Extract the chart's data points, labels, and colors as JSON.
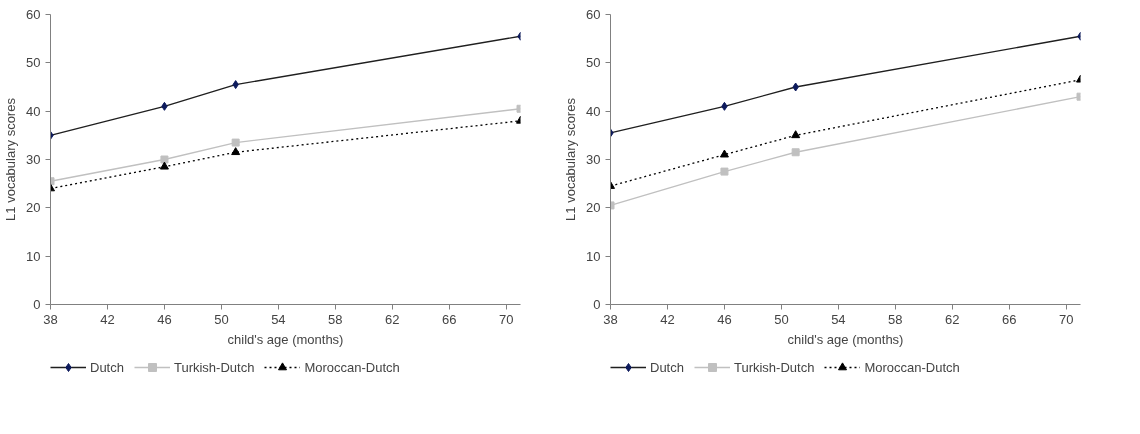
{
  "chart_data": [
    {
      "type": "line",
      "xlabel": "child's age (months)",
      "ylabel": "L1 vocabulary scores",
      "x": [
        38,
        46,
        51,
        71
      ],
      "xlim": [
        38,
        71
      ],
      "xticks": [
        38,
        42,
        46,
        50,
        54,
        58,
        62,
        66,
        70
      ],
      "ylim": [
        0,
        60
      ],
      "yticks": [
        0,
        10,
        20,
        30,
        40,
        50,
        60
      ],
      "grid": false,
      "legend": "bottom",
      "series": [
        {
          "name": "Dutch",
          "color": "#0d1a5c",
          "marker": "diamond",
          "line_style": "solid",
          "values": [
            35,
            41,
            45.5,
            55.5
          ]
        },
        {
          "name": "Turkish-Dutch",
          "color": "#c0c0c0",
          "marker": "square",
          "line_style": "solid",
          "values": [
            25.5,
            30,
            33.5,
            40.5
          ]
        },
        {
          "name": "Moroccan-Dutch",
          "color": "#000000",
          "marker": "triangle",
          "line_style": "dotted",
          "values": [
            24,
            28.5,
            31.5,
            38
          ]
        }
      ]
    },
    {
      "type": "line",
      "xlabel": "child's age (months)",
      "ylabel": "L1 vocabulary scores",
      "x": [
        38,
        46,
        51,
        71
      ],
      "xlim": [
        38,
        71
      ],
      "xticks": [
        38,
        42,
        46,
        50,
        54,
        58,
        62,
        66,
        70
      ],
      "ylim": [
        0,
        60
      ],
      "yticks": [
        0,
        10,
        20,
        30,
        40,
        50,
        60
      ],
      "grid": false,
      "legend": "bottom",
      "series": [
        {
          "name": "Dutch",
          "color": "#0d1a5c",
          "marker": "diamond",
          "line_style": "solid",
          "values": [
            35.5,
            41,
            45,
            55.5
          ]
        },
        {
          "name": "Turkish-Dutch",
          "color": "#c0c0c0",
          "marker": "square",
          "line_style": "solid",
          "values": [
            20.5,
            27.5,
            31.5,
            43
          ]
        },
        {
          "name": "Moroccan-Dutch",
          "color": "#000000",
          "marker": "triangle",
          "line_style": "dotted",
          "values": [
            24.5,
            31,
            35,
            46.5
          ]
        }
      ]
    }
  ]
}
